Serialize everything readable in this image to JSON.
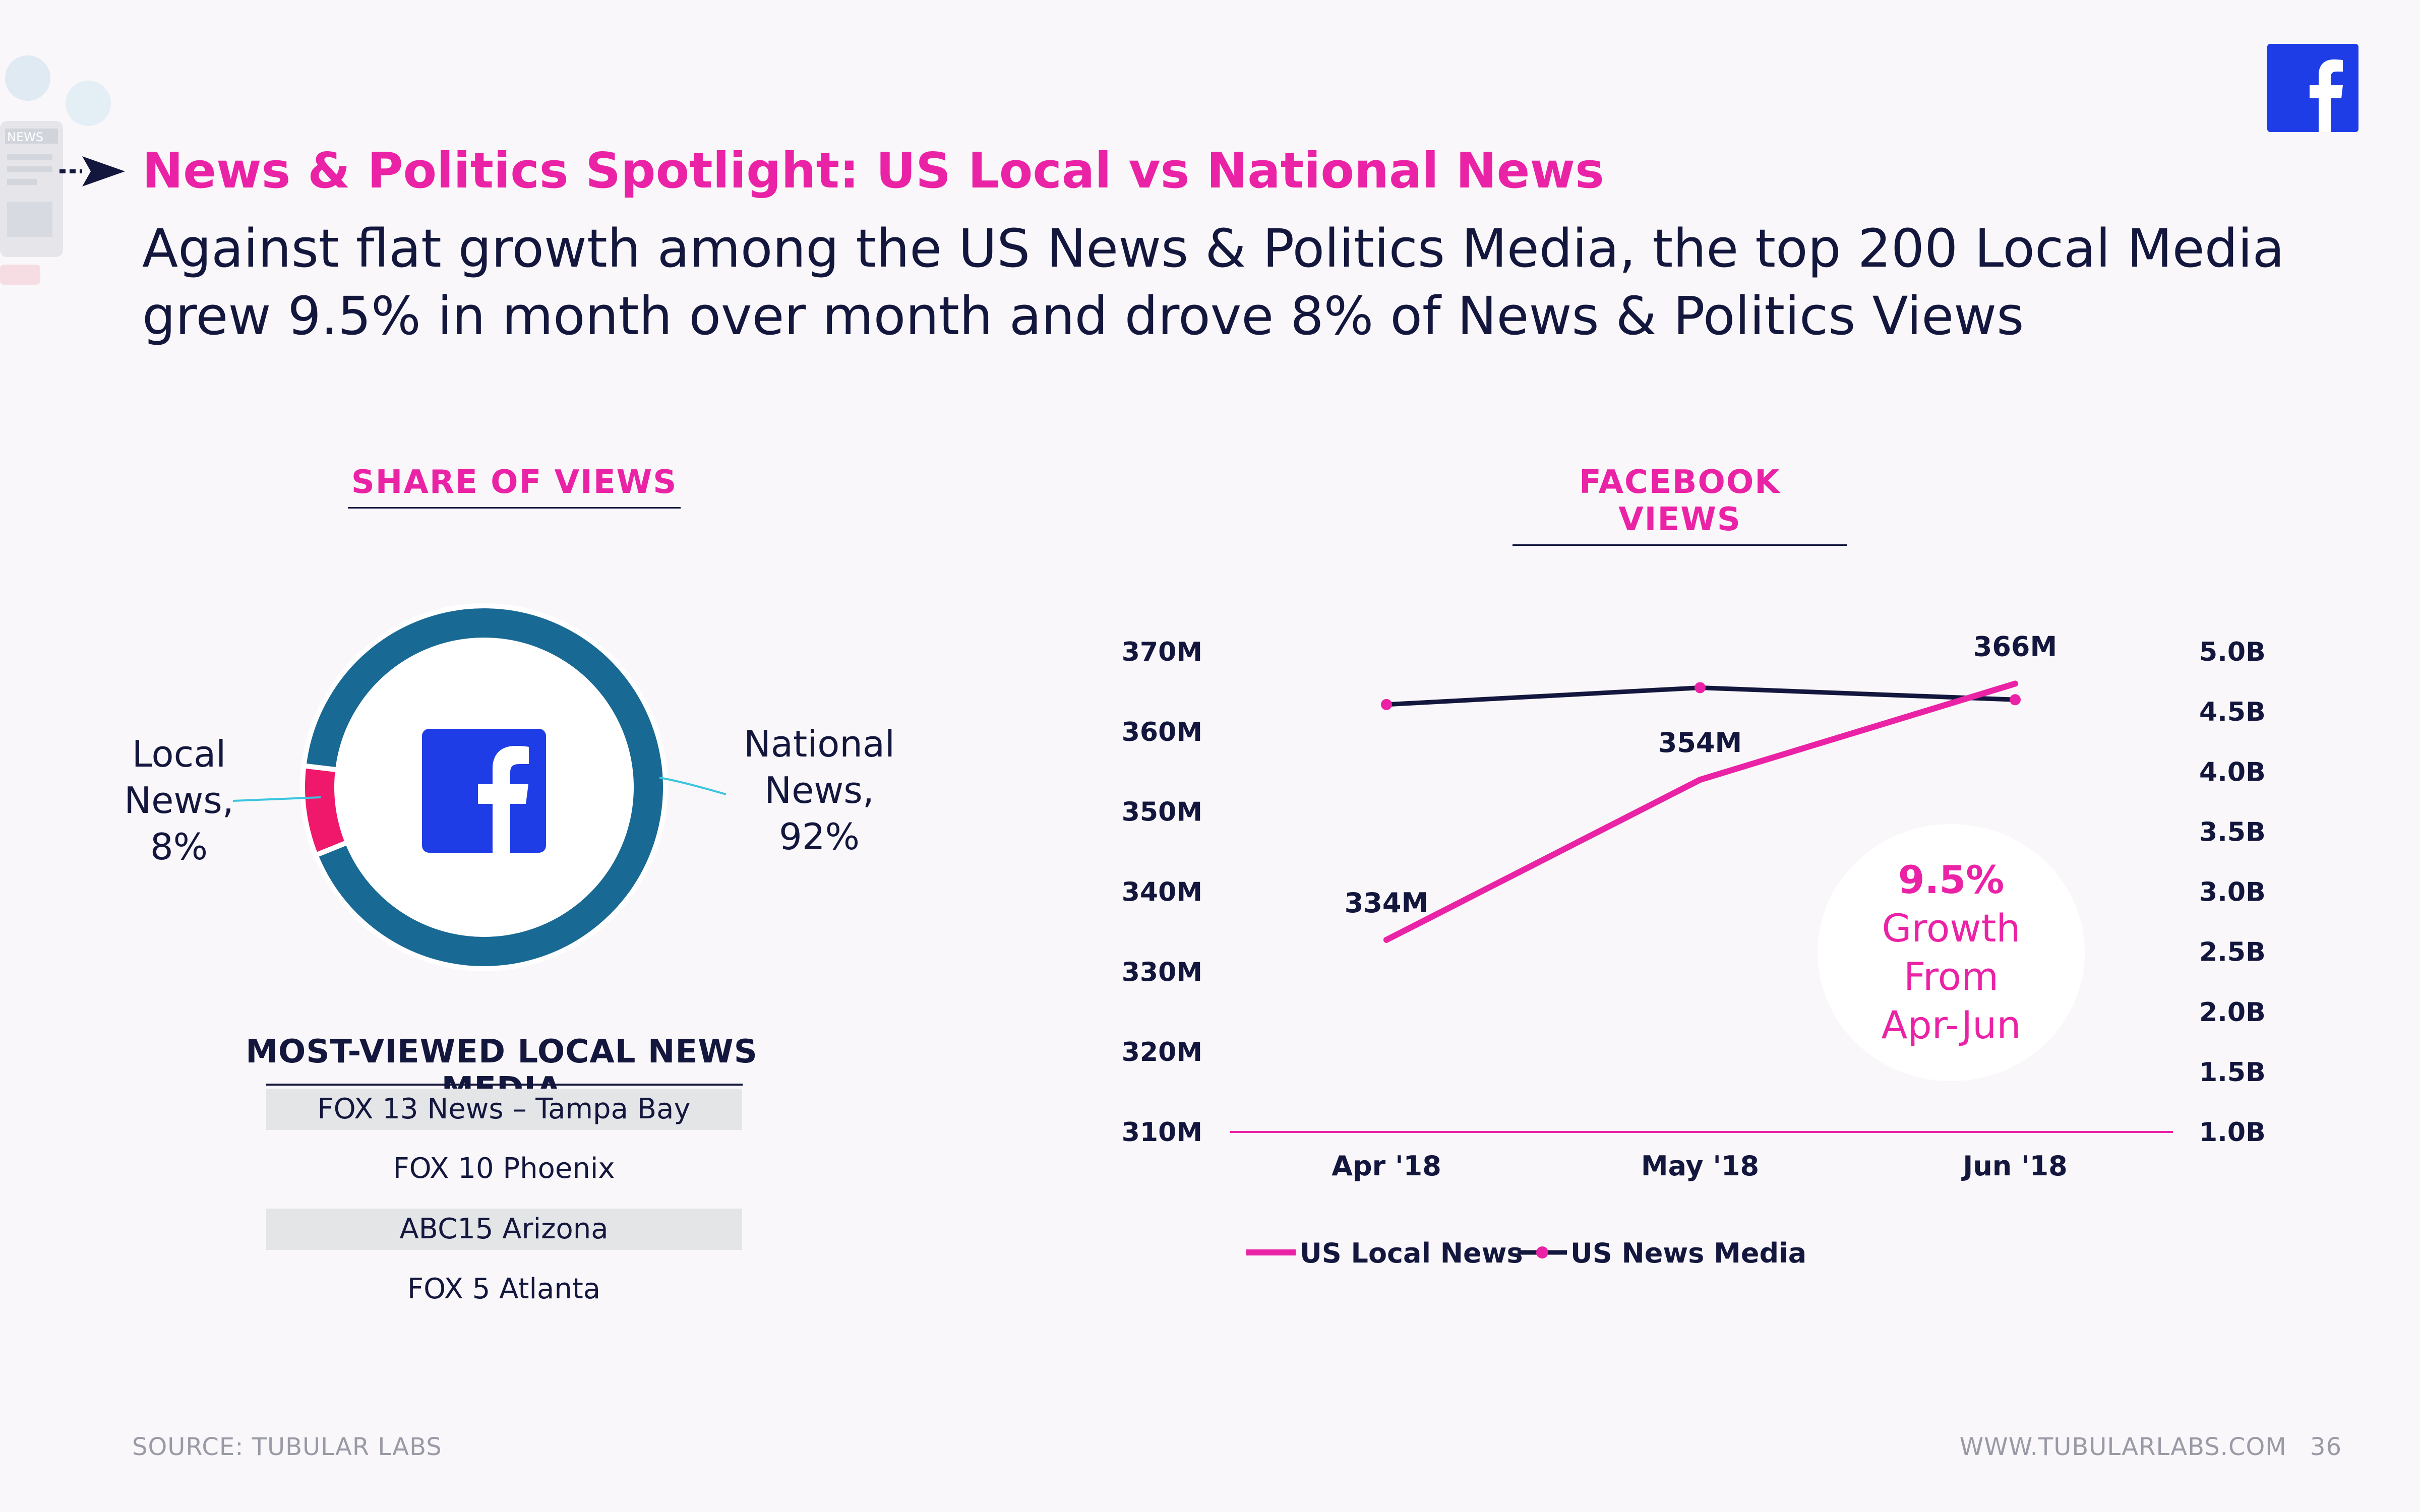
{
  "header": {
    "title": "News & Politics Spotlight: US Local vs National News",
    "subtitle": "Against flat growth among the US News & Politics Media, the top 200 Local Media grew 9.5% in month over month and drove 8% of News & Politics Views",
    "deco_tag": "NEWS"
  },
  "share": {
    "title": "SHARE OF VIEWS",
    "local_label": "Local News, 8%",
    "national_label": "National News, 92%"
  },
  "views": {
    "title": "FACEBOOK VIEWS"
  },
  "most_viewed": {
    "title": "MOST-VIEWED LOCAL NEWS MEDIA",
    "items": [
      "FOX 13 News – Tampa Bay",
      "FOX 10 Phoenix",
      "ABC15 Arizona",
      "FOX 5 Atlanta"
    ]
  },
  "growth": {
    "pct": "9.5%",
    "line1": "Growth",
    "line2": "From",
    "line3": "Apr-Jun"
  },
  "footer": {
    "source": "SOURCE: TUBULAR LABS",
    "url": "WWW.TUBULARLABS.COM",
    "page": "36"
  },
  "colors": {
    "pink": "#ea22a6",
    "navy": "#14173d",
    "ring": "#186994",
    "local": "#f0186a",
    "brand": "#1f3de6"
  },
  "chart_data": [
    {
      "type": "pie",
      "title": "SHARE OF VIEWS",
      "labels": [
        "Local News",
        "National News"
      ],
      "values": [
        8,
        92
      ],
      "colors": [
        "#f0186a",
        "#186994"
      ]
    },
    {
      "type": "line",
      "title": "FACEBOOK VIEWS",
      "categories": [
        "Apr '18",
        "May '18",
        "Jun '18"
      ],
      "series": [
        {
          "name": "US Local News",
          "axis": "left",
          "values": [
            334,
            354,
            366
          ],
          "labels": [
            "334M",
            "354M",
            "366M"
          ]
        },
        {
          "name": "US News Media",
          "axis": "right",
          "values": [
            4.56,
            4.7,
            4.6
          ]
        }
      ],
      "left_axis": {
        "ylim": [
          310,
          370
        ],
        "ticks": [
          "310M",
          "320M",
          "330M",
          "340M",
          "350M",
          "360M",
          "370M"
        ]
      },
      "right_axis": {
        "ylim": [
          1.0,
          5.0
        ],
        "ticks": [
          "1.0B",
          "1.5B",
          "2.0B",
          "2.5B",
          "3.0B",
          "3.5B",
          "4.0B",
          "4.5B",
          "5.0B"
        ]
      },
      "legend": "bottom"
    }
  ]
}
